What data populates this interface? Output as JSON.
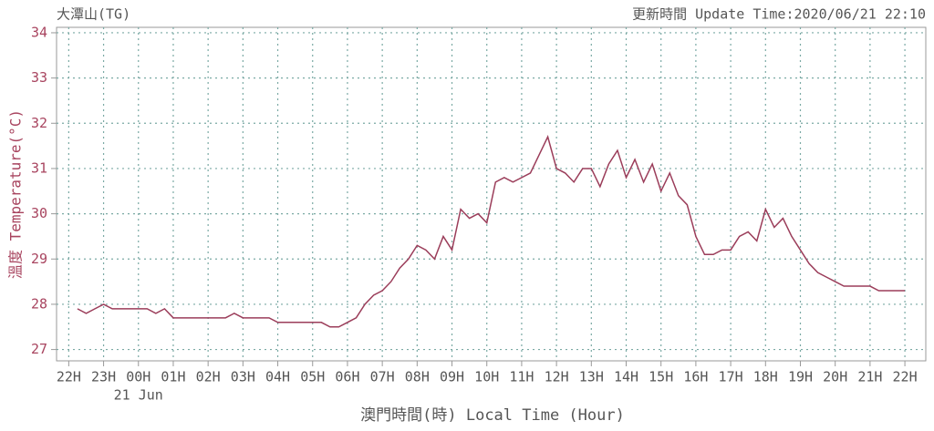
{
  "chart_data": {
    "type": "line",
    "title": "大潭山(TG)",
    "subtitle": "更新時間 Update Time:2020/06/21 22:10",
    "x_label": "澳門時間(時) Local Time (Hour)",
    "y_label": "溫度 Temperature(°C)",
    "date_label": "21 Jun",
    "x": [
      0.25,
      0.5,
      0.75,
      1,
      1.25,
      1.5,
      1.75,
      2,
      2.25,
      2.5,
      2.75,
      3,
      3.25,
      3.5,
      3.75,
      4,
      4.25,
      4.5,
      4.75,
      5,
      5.25,
      5.5,
      5.75,
      6,
      6.25,
      6.5,
      6.75,
      7,
      7.25,
      7.5,
      7.75,
      8,
      8.25,
      8.5,
      8.75,
      9,
      9.25,
      9.5,
      9.75,
      10,
      10.25,
      10.5,
      10.75,
      11,
      11.25,
      11.5,
      11.75,
      12,
      12.25,
      12.5,
      12.75,
      13,
      13.25,
      13.5,
      13.75,
      14,
      14.25,
      14.5,
      14.75,
      15,
      15.25,
      15.5,
      15.75,
      16,
      16.25,
      16.5,
      16.75,
      17,
      17.25,
      17.5,
      17.75,
      18,
      18.25,
      18.5,
      18.75,
      19,
      19.25,
      19.5,
      19.75,
      20,
      20.25,
      20.5,
      20.75,
      21,
      21.25,
      21.5,
      21.75,
      22,
      22.25,
      22.5,
      22.75,
      23,
      23.25,
      23.5,
      23.75,
      24
    ],
    "series": [
      {
        "color": "#9b3d5a",
        "values": [
          27.9,
          27.8,
          27.9,
          28.0,
          27.9,
          27.9,
          27.9,
          27.9,
          27.9,
          27.8,
          27.9,
          27.7,
          27.7,
          27.7,
          27.7,
          27.7,
          27.7,
          27.7,
          27.8,
          27.7,
          27.7,
          27.7,
          27.7,
          27.6,
          27.6,
          27.6,
          27.6,
          27.6,
          27.6,
          27.5,
          27.5,
          27.6,
          27.7,
          28.0,
          28.2,
          28.3,
          28.5,
          28.8,
          29.0,
          29.3,
          29.2,
          29.0,
          29.5,
          29.2,
          30.1,
          29.9,
          30.0,
          29.8,
          30.7,
          30.8,
          30.7,
          30.8,
          30.9,
          31.3,
          31.7,
          31.0,
          30.9,
          30.7,
          31.0,
          31.0,
          30.6,
          31.1,
          31.4,
          30.8,
          31.2,
          30.7,
          31.1,
          30.5,
          30.9,
          30.4,
          30.2,
          29.5,
          29.1,
          29.1,
          29.2,
          29.2,
          29.5,
          29.6,
          29.4,
          30.1,
          29.7,
          29.9,
          29.5,
          29.2,
          28.9,
          28.7,
          28.6,
          28.5,
          28.4,
          28.4,
          28.4,
          28.4,
          28.3,
          28.3,
          28.3,
          28.3
        ]
      }
    ],
    "xlim": [
      -0.35,
      24.6
    ],
    "xticks": [
      {
        "value": 0,
        "label": "22H"
      },
      {
        "value": 1,
        "label": "23H"
      },
      {
        "value": 2,
        "label": "00H"
      },
      {
        "value": 3,
        "label": "01H"
      },
      {
        "value": 4,
        "label": "02H"
      },
      {
        "value": 5,
        "label": "03H"
      },
      {
        "value": 6,
        "label": "04H"
      },
      {
        "value": 7,
        "label": "05H"
      },
      {
        "value": 8,
        "label": "06H"
      },
      {
        "value": 9,
        "label": "07H"
      },
      {
        "value": 10,
        "label": "08H"
      },
      {
        "value": 11,
        "label": "09H"
      },
      {
        "value": 12,
        "label": "10H"
      },
      {
        "value": 13,
        "label": "11H"
      },
      {
        "value": 14,
        "label": "12H"
      },
      {
        "value": 15,
        "label": "13H"
      },
      {
        "value": 16,
        "label": "14H"
      },
      {
        "value": 17,
        "label": "15H"
      },
      {
        "value": 18,
        "label": "16H"
      },
      {
        "value": 19,
        "label": "17H"
      },
      {
        "value": 20,
        "label": "18H"
      },
      {
        "value": 21,
        "label": "19H"
      },
      {
        "value": 22,
        "label": "20H"
      },
      {
        "value": 23,
        "label": "21H"
      },
      {
        "value": 24,
        "label": "22H"
      }
    ],
    "ylim": [
      26.75,
      34.12
    ],
    "yticks": [
      27,
      28,
      29,
      30,
      31,
      32,
      33,
      34
    ],
    "grid": true
  }
}
